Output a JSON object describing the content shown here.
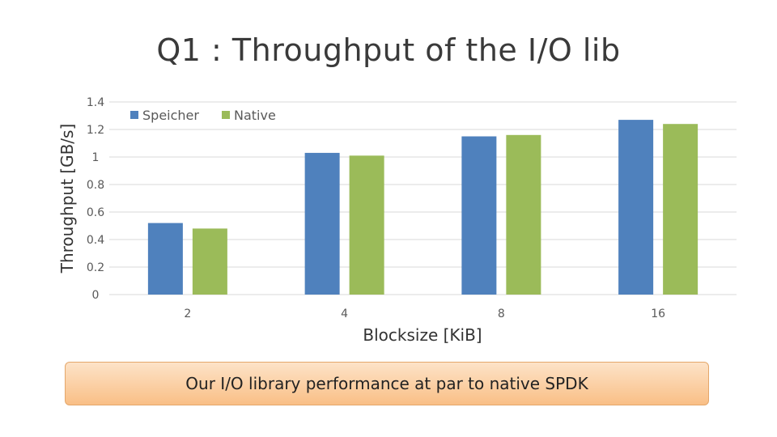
{
  "slide": {
    "title": "Q1 : Throughput of the I/O lib",
    "callout": "Our I/O library performance at par to native SPDK"
  },
  "chart_data": {
    "type": "bar",
    "categories": [
      "2",
      "4",
      "8",
      "16"
    ],
    "series": [
      {
        "name": "Speicher",
        "color": "#4f81bd",
        "values": [
          0.52,
          1.03,
          1.15,
          1.27
        ]
      },
      {
        "name": "Native",
        "color": "#9bbb59",
        "values": [
          0.48,
          1.01,
          1.16,
          1.24
        ]
      }
    ],
    "xlabel": "Blocksize [KiB]",
    "ylabel": "Throughput [GB/s]",
    "ylim": [
      0,
      1.4
    ],
    "yticks": [
      "0",
      "0.2",
      "0.4",
      "0.6",
      "0.8",
      "1",
      "1.2",
      "1.4"
    ],
    "grid": true,
    "legend_position": "top-left"
  }
}
